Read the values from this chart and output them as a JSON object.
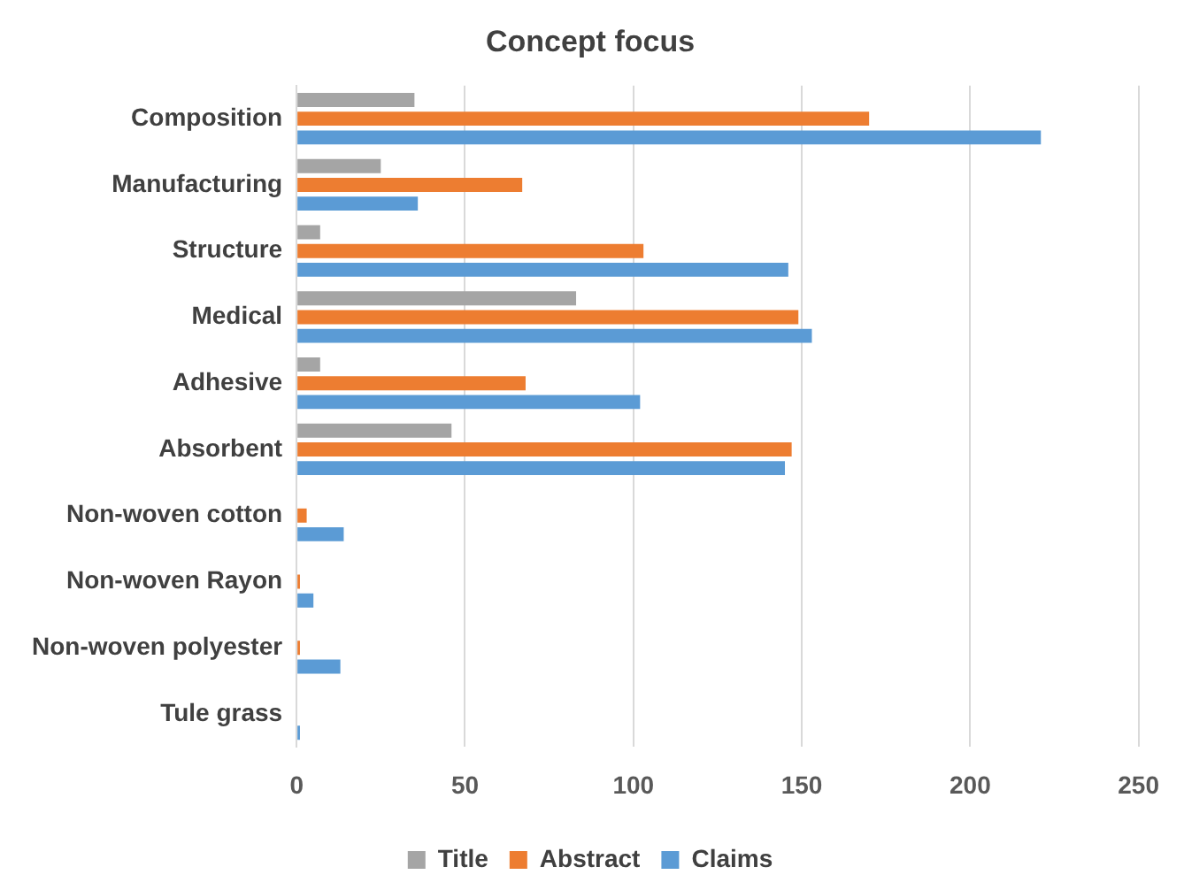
{
  "chart_data": {
    "type": "bar",
    "orientation": "horizontal",
    "title": "Concept focus",
    "categories": [
      "Composition",
      "Manufacturing",
      "Structure",
      "Medical",
      "Adhesive",
      "Absorbent",
      "Non-woven cotton",
      "Non-woven Rayon",
      "Non-woven polyester",
      "Tule grass"
    ],
    "series": [
      {
        "name": "Title",
        "color": "#a5a5a5",
        "values": [
          35,
          25,
          7,
          83,
          7,
          46,
          0,
          0,
          0,
          0
        ]
      },
      {
        "name": "Abstract",
        "color": "#ed7d31",
        "values": [
          170,
          67,
          103,
          149,
          68,
          147,
          3,
          1,
          1,
          0
        ]
      },
      {
        "name": "Claims",
        "color": "#5b9bd5",
        "values": [
          221,
          36,
          146,
          153,
          102,
          145,
          14,
          5,
          13,
          1
        ]
      }
    ],
    "xlim": [
      0,
      250
    ],
    "xticks": [
      0,
      50,
      100,
      150,
      200,
      250
    ],
    "grid": "x",
    "legend": "bottom"
  }
}
